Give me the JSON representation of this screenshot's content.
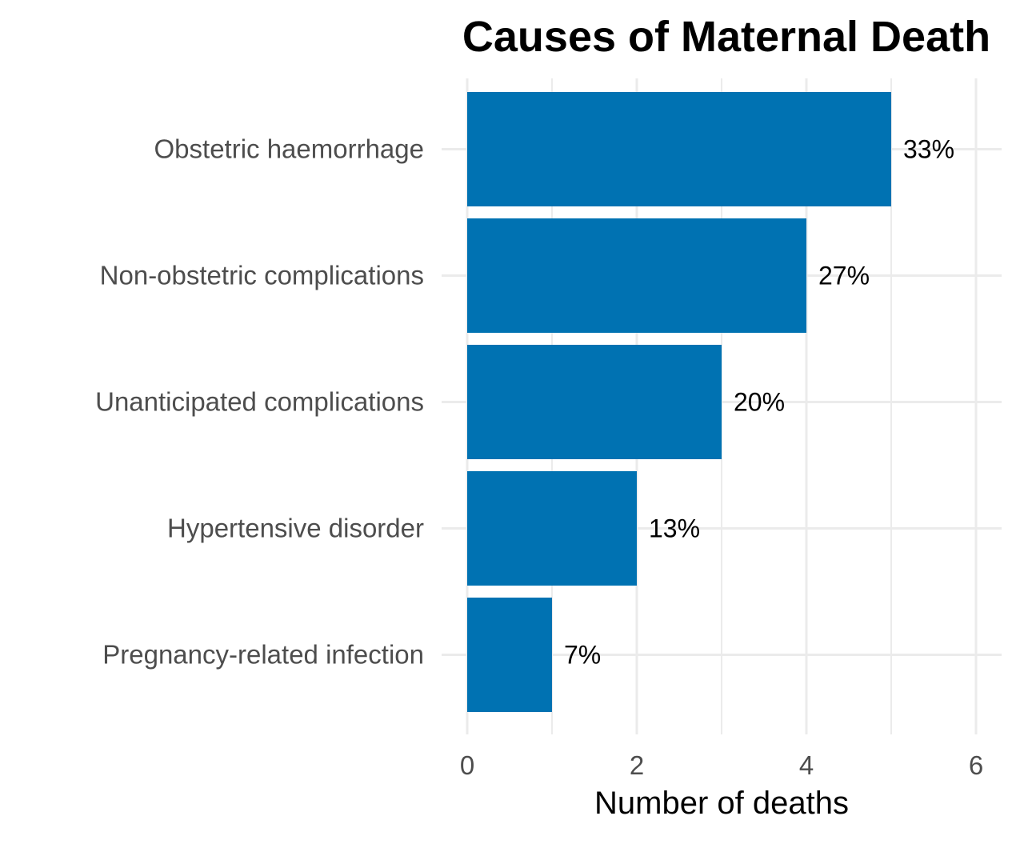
{
  "chart_data": {
    "type": "bar",
    "orientation": "horizontal",
    "title": "Causes of Maternal Death",
    "xlabel": "Number of deaths",
    "ylabel": "",
    "categories": [
      "Obstetric haemorrhage",
      "Non-obstetric complications",
      "Unanticipated complications",
      "Hypertensive disorder",
      "Pregnancy-related infection"
    ],
    "values": [
      5,
      4,
      3,
      2,
      1
    ],
    "data_labels": [
      "33%",
      "27%",
      "20%",
      "13%",
      "7%"
    ],
    "xlim": [
      0,
      6
    ],
    "x_ticks": [
      0,
      2,
      4,
      6
    ],
    "x_tick_labels": [
      "0",
      "2",
      "4",
      "6"
    ],
    "grid": true,
    "legend": "none",
    "bar_color": "#0072B2"
  }
}
